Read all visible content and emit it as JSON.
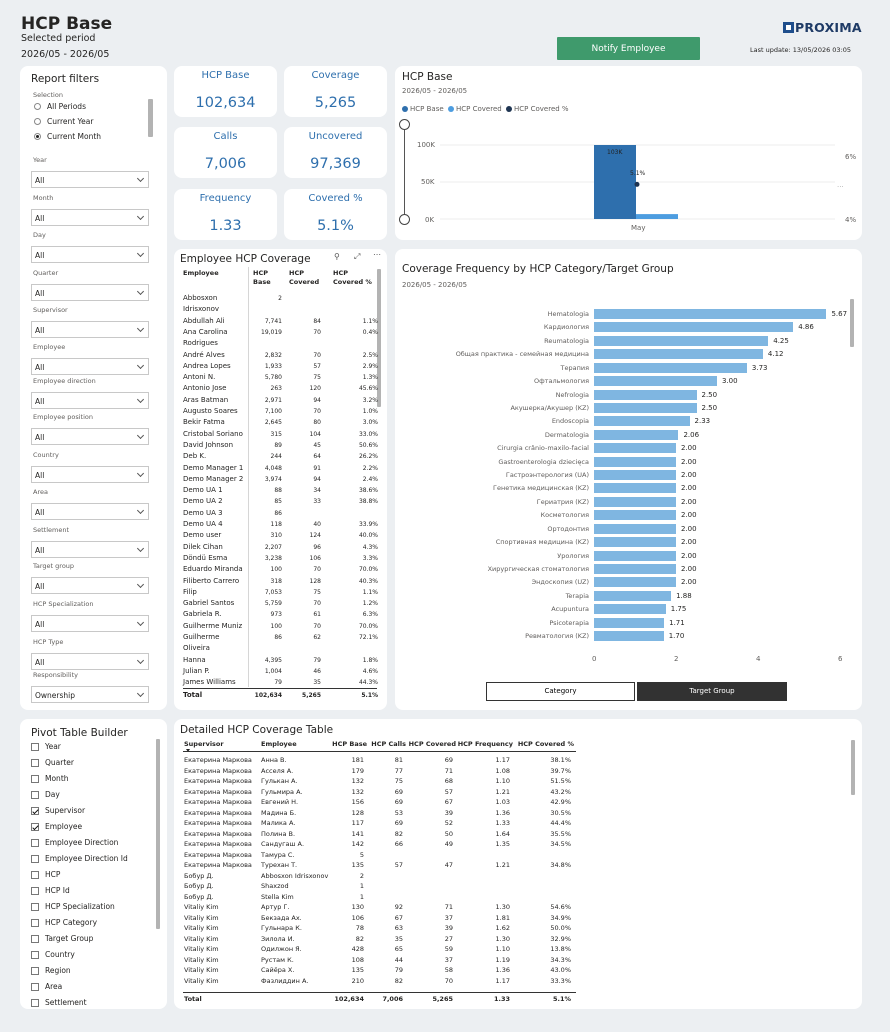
{
  "header": {
    "title": "HCP Base",
    "selected_period_label": "Selected period",
    "period": "2026/05 - 2026/05",
    "notify_button": "Notify Employee",
    "logo_text": "PROXIMA",
    "last_update": "Last update: 13/05/2026 03:05"
  },
  "filters": {
    "title": "Report filters",
    "selection_label": "Selection",
    "selection_options": [
      "All Periods",
      "Current Year",
      "Current Month"
    ],
    "selection_selected": "Current Month",
    "fields": [
      {
        "label": "Year",
        "value": "All"
      },
      {
        "label": "Month",
        "value": "All"
      },
      {
        "label": "Day",
        "value": "All"
      },
      {
        "label": "Quarter",
        "value": "All"
      },
      {
        "label": "Supervisor",
        "value": "All"
      },
      {
        "label": "Employee",
        "value": "All"
      },
      {
        "label": "Employee direction",
        "value": "All"
      },
      {
        "label": "Employee position",
        "value": "All"
      },
      {
        "label": "Country",
        "value": "All"
      },
      {
        "label": "Area",
        "value": "All"
      },
      {
        "label": "Settlement",
        "value": "All"
      },
      {
        "label": "Target group",
        "value": "All"
      },
      {
        "label": "HCP Specialization",
        "value": "All"
      },
      {
        "label": "HCP Type",
        "value": "All"
      },
      {
        "label": "Responsibility",
        "value": "Ownership"
      }
    ]
  },
  "kpis": {
    "hcp_base": {
      "label": "HCP Base",
      "value": "102,634"
    },
    "coverage": {
      "label": "Coverage",
      "value": "5,265"
    },
    "calls": {
      "label": "Calls",
      "value": "7,006"
    },
    "uncovered": {
      "label": "Uncovered",
      "value": "97,369"
    },
    "frequency": {
      "label": "Frequency",
      "value": "1.33"
    },
    "covered_pct": {
      "label": "Covered %",
      "value": "5.1%"
    }
  },
  "hcp_chart": {
    "title": "HCP Base",
    "period": "2026/05 - 2026/05",
    "legend": [
      {
        "name": "HCP Base",
        "color": "#2e6fad"
      },
      {
        "name": "HCP Covered",
        "color": "#4d9de0"
      },
      {
        "name": "HCP Covered %",
        "color": "#1f3552"
      }
    ],
    "y_ticks": [
      "100K",
      "50K",
      "0K"
    ],
    "y2_ticks": [
      "6%",
      "4%"
    ],
    "x_label": "May",
    "bar_label": "103K",
    "pct_label": "5.1%"
  },
  "chart_data": [
    {
      "type": "bar",
      "title": "HCP Base",
      "categories": [
        "May"
      ],
      "series": [
        {
          "name": "HCP Base",
          "values": [
            102634
          ]
        },
        {
          "name": "HCP Covered",
          "values": [
            5265
          ]
        },
        {
          "name": "HCP Covered %",
          "values": [
            5.1
          ]
        }
      ],
      "ylim": [
        0,
        120000
      ]
    },
    {
      "type": "bar",
      "orientation": "horizontal",
      "title": "Coverage Frequency by HCP Category/Target Group",
      "categories": [
        "Hematologia",
        "Кардиология",
        "Reumatologia",
        "Общая практика - семейная медицина",
        "Терапия",
        "Офтальмология",
        "Nefrologia",
        "Акушерка/Акушер (KZ)",
        "Endoscopia",
        "Dermatologia",
        "Cirurgia crânio-maxilo-facial",
        "Gastroenterologia dziecięca",
        "Гастроэнтерология (UA)",
        "Генетика медицинская (KZ)",
        "Гериатрия (KZ)",
        "Косметология",
        "Ортодонтия",
        "Спортивная медицина (KZ)",
        "Урология",
        "Хирургическая стоматология",
        "Эндоскопия (UZ)",
        "Terapia",
        "Acupuntura",
        "Psicoterapia",
        "Ревматология (KZ)"
      ],
      "values": [
        5.67,
        4.86,
        4.25,
        4.12,
        3.73,
        3.0,
        2.5,
        2.5,
        2.33,
        2.06,
        2.0,
        2.0,
        2.0,
        2.0,
        2.0,
        2.0,
        2.0,
        2.0,
        2.0,
        2.0,
        2.0,
        1.88,
        1.75,
        1.71,
        1.7
      ],
      "value_labels": [
        "5.67",
        "4.86",
        "4.25",
        "4.12",
        "3.73",
        "3.00",
        "2.50",
        "2.50",
        "2.33",
        "2.06",
        "2.00",
        "2.00",
        "2.00",
        "2.00",
        "2.00",
        "2.00",
        "2.00",
        "2.00",
        "2.00",
        "2.00",
        "2.00",
        "1.88",
        "1.75",
        "1.71",
        "1.70"
      ],
      "x_ticks": [
        "0",
        "2",
        "4",
        "6"
      ],
      "xlim": [
        0,
        6
      ]
    }
  ],
  "freq_chart": {
    "title": "Coverage Frequency by HCP Category/Target Group",
    "period": "2026/05 - 2026/05",
    "btn_category": "Category",
    "btn_target": "Target Group"
  },
  "emp_table": {
    "title": "Employee HCP Coverage",
    "headers": [
      "Employee",
      "HCP Base",
      "HCP Covered",
      "HCP Covered %"
    ],
    "rows": [
      [
        "Abbosxon",
        "2",
        "",
        ""
      ],
      [
        "Idrisxonov",
        "",
        "",
        ""
      ],
      [
        "Abdullah Ali",
        "7,741",
        "84",
        "1.1%"
      ],
      [
        "Ana Carolina",
        "19,019",
        "70",
        "0.4%"
      ],
      [
        "Rodrigues",
        "",
        "",
        ""
      ],
      [
        "André Alves",
        "2,832",
        "70",
        "2.5%"
      ],
      [
        "Andrea Lopes",
        "1,933",
        "57",
        "2.9%"
      ],
      [
        "Antoni N.",
        "5,780",
        "75",
        "1.3%"
      ],
      [
        "Antonio Jose",
        "263",
        "120",
        "45.6%"
      ],
      [
        "Aras Batman",
        "2,971",
        "94",
        "3.2%"
      ],
      [
        "Augusto Soares",
        "7,100",
        "70",
        "1.0%"
      ],
      [
        "Bekir Fatma",
        "2,645",
        "80",
        "3.0%"
      ],
      [
        "Cristobal Soriano",
        "315",
        "104",
        "33.0%"
      ],
      [
        "David Johnson",
        "89",
        "45",
        "50.6%"
      ],
      [
        "Deb K.",
        "244",
        "64",
        "26.2%"
      ],
      [
        "Demo Manager 1",
        "4,048",
        "91",
        "2.2%"
      ],
      [
        "Demo Manager 2",
        "3,974",
        "94",
        "2.4%"
      ],
      [
        "Demo UA 1",
        "88",
        "34",
        "38.6%"
      ],
      [
        "Demo UA 2",
        "85",
        "33",
        "38.8%"
      ],
      [
        "Demo UA 3",
        "86",
        "",
        ""
      ],
      [
        "Demo UA 4",
        "118",
        "40",
        "33.9%"
      ],
      [
        "Demo user",
        "310",
        "124",
        "40.0%"
      ],
      [
        "Dilek Cihan",
        "2,207",
        "96",
        "4.3%"
      ],
      [
        "Döndü Esma",
        "3,238",
        "106",
        "3.3%"
      ],
      [
        "Eduardo Miranda",
        "100",
        "70",
        "70.0%"
      ],
      [
        "Filiberto Carrero",
        "318",
        "128",
        "40.3%"
      ],
      [
        "Filip",
        "7,053",
        "75",
        "1.1%"
      ],
      [
        "Gabriel Santos",
        "5,759",
        "70",
        "1.2%"
      ],
      [
        "Gabriela R.",
        "973",
        "61",
        "6.3%"
      ],
      [
        "Guilherme Muniz",
        "100",
        "70",
        "70.0%"
      ],
      [
        "Guilherme",
        "86",
        "62",
        "72.1%"
      ],
      [
        "Oliveira",
        "",
        "",
        ""
      ],
      [
        "Hanna",
        "4,395",
        "79",
        "1.8%"
      ],
      [
        "Julian P.",
        "1,004",
        "46",
        "4.6%"
      ],
      [
        "James Williams",
        "79",
        "35",
        "44.3%"
      ]
    ],
    "total": [
      "Total",
      "102,634",
      "5,265",
      "5.1%"
    ]
  },
  "pivot": {
    "title": "Pivot Table Builder",
    "items": [
      {
        "label": "Year",
        "checked": false
      },
      {
        "label": "Quarter",
        "checked": false
      },
      {
        "label": "Month",
        "checked": false
      },
      {
        "label": "Day",
        "checked": false
      },
      {
        "label": "Supervisor",
        "checked": true
      },
      {
        "label": "Employee",
        "checked": true
      },
      {
        "label": "Employee Direction",
        "checked": false
      },
      {
        "label": "Employee Direction Id",
        "checked": false
      },
      {
        "label": "HCP",
        "checked": false
      },
      {
        "label": "HCP Id",
        "checked": false
      },
      {
        "label": "HCP Specialization",
        "checked": false
      },
      {
        "label": "HCP Category",
        "checked": false
      },
      {
        "label": "Target Group",
        "checked": false
      },
      {
        "label": "Country",
        "checked": false
      },
      {
        "label": "Region",
        "checked": false
      },
      {
        "label": "Area",
        "checked": false
      },
      {
        "label": "Settlement",
        "checked": false
      }
    ]
  },
  "detail_table": {
    "title": "Detailed HCP Coverage Table",
    "headers": [
      "Supervisor",
      "Employee",
      "HCP Base",
      "HCP Calls",
      "HCP Covered",
      "HCP Frequency",
      "HCP Covered %"
    ],
    "rows": [
      [
        "Екатерина Маркова",
        "Анна В.",
        "181",
        "81",
        "69",
        "1.17",
        "38.1%"
      ],
      [
        "Екатерина Маркова",
        "Асселя А.",
        "179",
        "77",
        "71",
        "1.08",
        "39.7%"
      ],
      [
        "Екатерина Маркова",
        "Гулькан А.",
        "132",
        "75",
        "68",
        "1.10",
        "51.5%"
      ],
      [
        "Екатерина Маркова",
        "Гульмира А.",
        "132",
        "69",
        "57",
        "1.21",
        "43.2%"
      ],
      [
        "Екатерина Маркова",
        "Евгений Н.",
        "156",
        "69",
        "67",
        "1.03",
        "42.9%"
      ],
      [
        "Екатерина Маркова",
        "Мадина Б.",
        "128",
        "53",
        "39",
        "1.36",
        "30.5%"
      ],
      [
        "Екатерина Маркова",
        "Малика А.",
        "117",
        "69",
        "52",
        "1.33",
        "44.4%"
      ],
      [
        "Екатерина Маркова",
        "Полина В.",
        "141",
        "82",
        "50",
        "1.64",
        "35.5%"
      ],
      [
        "Екатерина Маркова",
        "Сандугаш А.",
        "142",
        "66",
        "49",
        "1.35",
        "34.5%"
      ],
      [
        "Екатерина Маркова",
        "Тамура С.",
        "5",
        "",
        "",
        "",
        ""
      ],
      [
        "Екатерина Маркова",
        "Турехан Т.",
        "135",
        "57",
        "47",
        "1.21",
        "34.8%"
      ],
      [
        "Бобур Д.",
        "Abbosxon Idrisxonov",
        "2",
        "",
        "",
        "",
        ""
      ],
      [
        "Бобур Д.",
        "Shaxzod",
        "1",
        "",
        "",
        "",
        ""
      ],
      [
        "Бобур Д.",
        "Stella Kim",
        "1",
        "",
        "",
        "",
        ""
      ],
      [
        "Vitaliy Kim",
        "Артур Г.",
        "130",
        "92",
        "71",
        "1.30",
        "54.6%"
      ],
      [
        "Vitaliy Kim",
        "Бекзада Ах.",
        "106",
        "67",
        "37",
        "1.81",
        "34.9%"
      ],
      [
        "Vitaliy Kim",
        "Гульнара К.",
        "78",
        "63",
        "39",
        "1.62",
        "50.0%"
      ],
      [
        "Vitaliy Kim",
        "Зилола И.",
        "82",
        "35",
        "27",
        "1.30",
        "32.9%"
      ],
      [
        "Vitaliy Kim",
        "Одилжон Я.",
        "428",
        "65",
        "59",
        "1.10",
        "13.8%"
      ],
      [
        "Vitaliy Kim",
        "Рустам К.",
        "108",
        "44",
        "37",
        "1.19",
        "34.3%"
      ],
      [
        "Vitaliy Kim",
        "Сайёра Х.",
        "135",
        "79",
        "58",
        "1.36",
        "43.0%"
      ],
      [
        "Vitaliy Kim",
        "Фазлиддин А.",
        "210",
        "82",
        "70",
        "1.17",
        "33.3%"
      ]
    ],
    "total": [
      "Total",
      "",
      "102,634",
      "7,006",
      "5,265",
      "1.33",
      "5.1%"
    ]
  }
}
